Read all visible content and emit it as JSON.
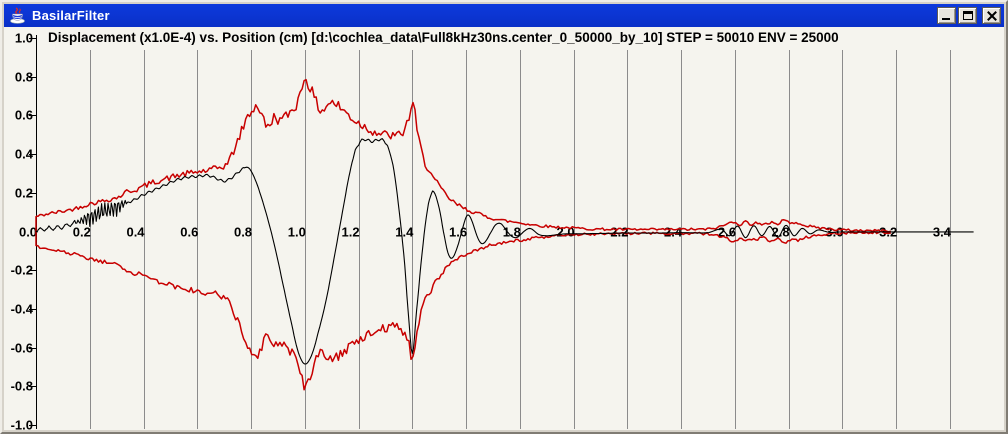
{
  "window": {
    "title": "BasilarFilter",
    "app_icon": "java-coffee-cup-icon",
    "controls": [
      {
        "name": "minimize"
      },
      {
        "name": "maximize"
      },
      {
        "name": "close"
      }
    ]
  },
  "chart": {
    "title": "Displacement (x1.0E-4) vs. Position (cm) [d:\\cochlea_data\\Full8kHz30ns.center_0_50000_by_10] STEP = 50010 ENV = 25000"
  },
  "chart_data": {
    "type": "line",
    "title": "Displacement (x1.0E-4) vs. Position (cm) [d:\\cochlea_data\\Full8kHz30ns.center_0_50000_by_10] STEP = 50010 ENV = 25000",
    "xlabel": "Position (cm)",
    "ylabel": "Displacement (x1.0E-4)",
    "xlim": [
      0,
      3.5
    ],
    "ylim": [
      -1.0,
      1.0
    ],
    "grid": "vertical-only",
    "step_annotation": "STEP = 50010",
    "env_annotation": "ENV = 25000",
    "x_ticks": [
      {
        "v": 0.0,
        "label": "0.0"
      },
      {
        "v": 0.2,
        "label": "0.2"
      },
      {
        "v": 0.4,
        "label": "0.4"
      },
      {
        "v": 0.6,
        "label": "0.6"
      },
      {
        "v": 0.8,
        "label": "0.8"
      },
      {
        "v": 1.0,
        "label": "1.0"
      },
      {
        "v": 1.2,
        "label": "1.2"
      },
      {
        "v": 1.4,
        "label": "1.4"
      },
      {
        "v": 1.6,
        "label": "1.6"
      },
      {
        "v": 1.8,
        "label": "1.8"
      },
      {
        "v": 2.0,
        "label": "2.0"
      },
      {
        "v": 2.2,
        "label": "2.2"
      },
      {
        "v": 2.4,
        "label": "2.4"
      },
      {
        "v": 2.6,
        "label": "2.6"
      },
      {
        "v": 2.8,
        "label": "2.8"
      },
      {
        "v": 3.0,
        "label": "3.0"
      },
      {
        "v": 3.2,
        "label": "3.2"
      },
      {
        "v": 3.4,
        "label": "3.4"
      }
    ],
    "y_ticks": [
      {
        "v": 1.0,
        "label": "1.0"
      },
      {
        "v": 0.8,
        "label": "0.8"
      },
      {
        "v": 0.6,
        "label": "0.6"
      },
      {
        "v": 0.4,
        "label": "0.4"
      },
      {
        "v": 0.2,
        "label": "0.2"
      },
      {
        "v": -0.2,
        "label": "-0.2"
      },
      {
        "v": -0.4,
        "label": "-0.4"
      },
      {
        "v": -0.6,
        "label": "-0.6"
      },
      {
        "v": -0.8,
        "label": "-0.8"
      },
      {
        "v": -1.0,
        "label": "-1.0"
      }
    ],
    "series": [
      {
        "name": "envelope",
        "color": "#C80000",
        "style": "noisy-mirrored-envelope",
        "x_end": 3.18,
        "points": [
          [
            0,
            0.078
          ],
          [
            0.04,
            0.09
          ],
          [
            0.08,
            0.1
          ],
          [
            0.12,
            0.11
          ],
          [
            0.16,
            0.125
          ],
          [
            0.2,
            0.143
          ],
          [
            0.24,
            0.155
          ],
          [
            0.28,
            0.168
          ],
          [
            0.31,
            0.18
          ],
          [
            0.335,
            0.205
          ],
          [
            0.37,
            0.215
          ],
          [
            0.41,
            0.24
          ],
          [
            0.45,
            0.26
          ],
          [
            0.49,
            0.275
          ],
          [
            0.53,
            0.29
          ],
          [
            0.57,
            0.3
          ],
          [
            0.61,
            0.31
          ],
          [
            0.64,
            0.315
          ],
          [
            0.68,
            0.33
          ],
          [
            0.71,
            0.35
          ],
          [
            0.74,
            0.43
          ],
          [
            0.765,
            0.52
          ],
          [
            0.79,
            0.6
          ],
          [
            0.825,
            0.645
          ],
          [
            0.86,
            0.54
          ],
          [
            0.885,
            0.59
          ],
          [
            0.91,
            0.575
          ],
          [
            0.94,
            0.61
          ],
          [
            0.97,
            0.66
          ],
          [
            0.985,
            0.72
          ],
          [
            1.0,
            0.8
          ],
          [
            1.02,
            0.74
          ],
          [
            1.045,
            0.66
          ],
          [
            1.065,
            0.625
          ],
          [
            1.085,
            0.66
          ],
          [
            1.105,
            0.665
          ],
          [
            1.14,
            0.63
          ],
          [
            1.18,
            0.58
          ],
          [
            1.22,
            0.545
          ],
          [
            1.26,
            0.515
          ],
          [
            1.3,
            0.5
          ],
          [
            1.34,
            0.495
          ],
          [
            1.37,
            0.52
          ],
          [
            1.39,
            0.6
          ],
          [
            1.402,
            0.665
          ],
          [
            1.418,
            0.52
          ],
          [
            1.435,
            0.41
          ],
          [
            1.45,
            0.345
          ],
          [
            1.465,
            0.315
          ],
          [
            1.48,
            0.27
          ],
          [
            1.5,
            0.235
          ],
          [
            1.53,
            0.18
          ],
          [
            1.56,
            0.145
          ],
          [
            1.6,
            0.115
          ],
          [
            1.64,
            0.095
          ],
          [
            1.68,
            0.075
          ],
          [
            1.72,
            0.062
          ],
          [
            1.76,
            0.052
          ],
          [
            1.8,
            0.045
          ],
          [
            1.85,
            0.034
          ],
          [
            1.9,
            0.027
          ],
          [
            1.95,
            0.022
          ],
          [
            2.0,
            0.018
          ],
          [
            2.05,
            0.014
          ],
          [
            2.1,
            0.012
          ],
          [
            2.2,
            0.01
          ],
          [
            2.3,
            0.01
          ],
          [
            2.4,
            0.011
          ],
          [
            2.5,
            0.012
          ],
          [
            2.54,
            0.022
          ],
          [
            2.57,
            0.038
          ],
          [
            2.6,
            0.052
          ],
          [
            2.62,
            0.034
          ],
          [
            2.64,
            0.05
          ],
          [
            2.66,
            0.038
          ],
          [
            2.68,
            0.046
          ],
          [
            2.7,
            0.032
          ],
          [
            2.72,
            0.04
          ],
          [
            2.74,
            0.05
          ],
          [
            2.76,
            0.038
          ],
          [
            2.78,
            0.06
          ],
          [
            2.8,
            0.05
          ],
          [
            2.82,
            0.038
          ],
          [
            2.84,
            0.046
          ],
          [
            2.86,
            0.032
          ],
          [
            2.88,
            0.026
          ],
          [
            2.9,
            0.022
          ],
          [
            2.93,
            0.016
          ],
          [
            2.96,
            0.012
          ],
          [
            3.0,
            0.008
          ],
          [
            3.05,
            0.006
          ],
          [
            3.1,
            0.005
          ],
          [
            3.18,
            0.004
          ]
        ],
        "noise": {
          "base": 0.006,
          "amp_factor": 0.035,
          "sample_step": 0.0075,
          "seed_upper": 42,
          "seed_lower": 1337
        }
      },
      {
        "name": "displacement",
        "color": "#000000",
        "style": "carrier-wave",
        "x_end": 3.49,
        "points": [
          [
            0,
            0.005
          ],
          [
            0.04,
            0.015
          ],
          [
            0.08,
            0.02
          ],
          [
            0.12,
            0.032
          ],
          [
            0.145,
            0.045
          ],
          [
            0.19,
            0.07
          ],
          [
            0.24,
            0.095
          ],
          [
            0.29,
            0.12
          ],
          [
            0.33,
            0.145
          ],
          [
            0.36,
            0.16
          ],
          [
            0.4,
            0.19
          ],
          [
            0.44,
            0.215
          ],
          [
            0.48,
            0.24
          ],
          [
            0.52,
            0.265
          ],
          [
            0.56,
            0.28
          ],
          [
            0.6,
            0.285
          ],
          [
            0.64,
            0.29
          ],
          [
            0.67,
            0.275
          ],
          [
            0.7,
            0.26
          ],
          [
            0.73,
            0.28
          ],
          [
            0.76,
            0.315
          ],
          [
            0.79,
            0.33
          ],
          [
            0.815,
            0.27
          ],
          [
            0.84,
            0.17
          ],
          [
            0.865,
            0.05
          ],
          [
            0.89,
            -0.09
          ],
          [
            0.92,
            -0.28
          ],
          [
            0.95,
            -0.47
          ],
          [
            0.975,
            -0.62
          ],
          [
            1.0,
            -0.685
          ],
          [
            1.025,
            -0.64
          ],
          [
            1.05,
            -0.52
          ],
          [
            1.08,
            -0.35
          ],
          [
            1.11,
            -0.13
          ],
          [
            1.14,
            0.1
          ],
          [
            1.17,
            0.32
          ],
          [
            1.195,
            0.44
          ],
          [
            1.22,
            0.475
          ],
          [
            1.25,
            0.465
          ],
          [
            1.28,
            0.475
          ],
          [
            1.305,
            0.45
          ],
          [
            1.33,
            0.33
          ],
          [
            1.35,
            0.12
          ],
          [
            1.37,
            -0.14
          ],
          [
            1.385,
            -0.42
          ],
          [
            1.4,
            -0.63
          ],
          [
            1.415,
            -0.42
          ],
          [
            1.435,
            -0.13
          ],
          [
            1.455,
            0.1
          ],
          [
            1.47,
            0.19
          ],
          [
            1.48,
            0.205
          ],
          [
            1.5,
            0.12
          ],
          [
            1.52,
            -0.03
          ],
          [
            1.535,
            -0.12
          ],
          [
            1.55,
            -0.135
          ],
          [
            1.57,
            -0.07
          ],
          [
            1.59,
            0.03
          ],
          [
            1.605,
            0.085
          ],
          [
            1.62,
            0.06
          ],
          [
            1.64,
            -0.02
          ],
          [
            1.655,
            -0.06
          ],
          [
            1.67,
            -0.055
          ],
          [
            1.69,
            -0.01
          ],
          [
            1.71,
            0.035
          ],
          [
            1.73,
            0.04
          ],
          [
            1.75,
            0.005
          ],
          [
            1.77,
            -0.025
          ],
          [
            1.79,
            -0.03
          ],
          [
            1.82,
            0.005
          ],
          [
            1.84,
            0.015
          ],
          [
            1.87,
            -0.015
          ],
          [
            1.9,
            -0.022
          ],
          [
            1.93,
            -0.018
          ],
          [
            1.97,
            -0.012
          ],
          [
            2.02,
            -0.012
          ],
          [
            2.1,
            -0.01
          ],
          [
            2.2,
            -0.008
          ],
          [
            2.3,
            -0.008
          ],
          [
            2.4,
            -0.006
          ],
          [
            2.5,
            -0.006
          ],
          [
            2.55,
            0.012
          ],
          [
            2.58,
            -0.022
          ],
          [
            2.61,
            0.028
          ],
          [
            2.64,
            -0.032
          ],
          [
            2.67,
            0.03
          ],
          [
            2.7,
            -0.022
          ],
          [
            2.73,
            0.026
          ],
          [
            2.76,
            -0.03
          ],
          [
            2.79,
            0.032
          ],
          [
            2.82,
            -0.022
          ],
          [
            2.85,
            0.016
          ],
          [
            2.88,
            -0.012
          ],
          [
            2.91,
            0.008
          ],
          [
            2.95,
            -0.004
          ],
          [
            3.0,
            -0.002
          ],
          [
            3.2,
            -0.002
          ],
          [
            3.49,
            -0.002
          ]
        ],
        "high_freq_burst": {
          "t_start": 0.145,
          "t_end": 0.345,
          "amplitude": 0.048,
          "period": 0.0125
        },
        "ripples": [
          {
            "t_start": 0.0,
            "t_end": 0.145,
            "amplitude": 0.011,
            "period": 0.032
          },
          {
            "t_start": 0.345,
            "t_end": 0.78,
            "amplitude": 0.007,
            "period": 0.027
          },
          {
            "t_start": 1.18,
            "t_end": 1.31,
            "amplitude": 0.008,
            "period": 0.025
          }
        ]
      }
    ],
    "colors": {
      "grid": "#8B8B8B",
      "axis": "#000000",
      "background": "#F5F4EE"
    }
  }
}
